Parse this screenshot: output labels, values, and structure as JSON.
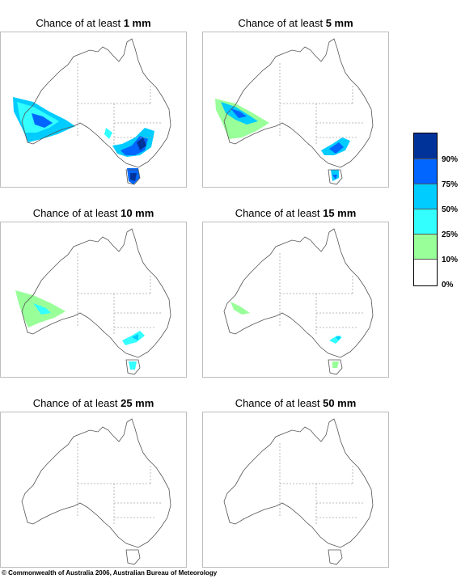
{
  "panels": [
    {
      "title_prefix": "Chance of at least ",
      "threshold": "1 mm"
    },
    {
      "title_prefix": "Chance of at least ",
      "threshold": "5 mm"
    },
    {
      "title_prefix": "Chance of at least ",
      "threshold": "10 mm"
    },
    {
      "title_prefix": "Chance of at least ",
      "threshold": "15 mm"
    },
    {
      "title_prefix": "Chance of at least ",
      "threshold": "25 mm"
    },
    {
      "title_prefix": "Chance of at least ",
      "threshold": "50 mm"
    }
  ],
  "legend": {
    "labels": [
      "90%",
      "75%",
      "50%",
      "25%",
      "10%",
      "0%"
    ],
    "colors": {
      "band_90_100": "#003399",
      "band_75_90": "#0066ff",
      "band_50_75": "#00ccff",
      "band_25_50": "#33ffff",
      "band_10_25": "#99ff99",
      "band_0_10": "#ffffff"
    }
  },
  "copyright": "© Commonwealth of Australia 2006, Australian Bureau of Meteorology"
}
